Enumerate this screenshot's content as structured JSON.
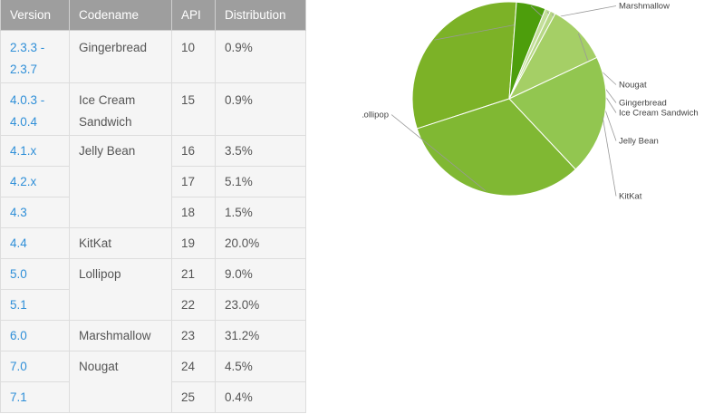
{
  "table": {
    "headers": {
      "version": "Version",
      "codename": "Codename",
      "api": "API",
      "distribution": "Distribution"
    },
    "rows": [
      {
        "version": "2.3.3 - 2.3.7",
        "codename": "Gingerbread",
        "api": "10",
        "distribution": "0.9%"
      },
      {
        "version": "4.0.3 - 4.0.4",
        "codename": "Ice Cream Sandwich",
        "api": "15",
        "distribution": "0.9%"
      },
      {
        "version": "4.1.x",
        "codename": "Jelly Bean",
        "api": "16",
        "distribution": "3.5%"
      },
      {
        "version": "4.2.x",
        "codename": "",
        "api": "17",
        "distribution": "5.1%"
      },
      {
        "version": "4.3",
        "codename": "",
        "api": "18",
        "distribution": "1.5%"
      },
      {
        "version": "4.4",
        "codename": "KitKat",
        "api": "19",
        "distribution": "20.0%"
      },
      {
        "version": "5.0",
        "codename": "Lollipop",
        "api": "21",
        "distribution": "9.0%"
      },
      {
        "version": "5.1",
        "codename": "",
        "api": "22",
        "distribution": "23.0%"
      },
      {
        "version": "6.0",
        "codename": "Marshmallow",
        "api": "23",
        "distribution": "31.2%"
      },
      {
        "version": "7.0",
        "codename": "Nougat",
        "api": "24",
        "distribution": "4.5%"
      },
      {
        "version": "7.1",
        "codename": "",
        "api": "25",
        "distribution": "0.4%"
      }
    ]
  },
  "chart_data": {
    "type": "pie",
    "title": "",
    "slices": [
      {
        "label": "Marshmallow",
        "value": 31.2,
        "color": "#7cb227"
      },
      {
        "label": "Nougat",
        "value": 4.9,
        "color": "#4d9e0c"
      },
      {
        "label": "Gingerbread",
        "value": 0.9,
        "color": "#c4df9b"
      },
      {
        "label": "Ice Cream Sandwich",
        "value": 0.9,
        "color": "#b7d886"
      },
      {
        "label": "Jelly Bean",
        "value": 10.1,
        "color": "#a5cf66"
      },
      {
        "label": "KitKat",
        "value": 20.0,
        "color": "#92c650"
      },
      {
        "label": "Lollipop",
        "value": 32.0,
        "color": "#80b833"
      }
    ]
  }
}
